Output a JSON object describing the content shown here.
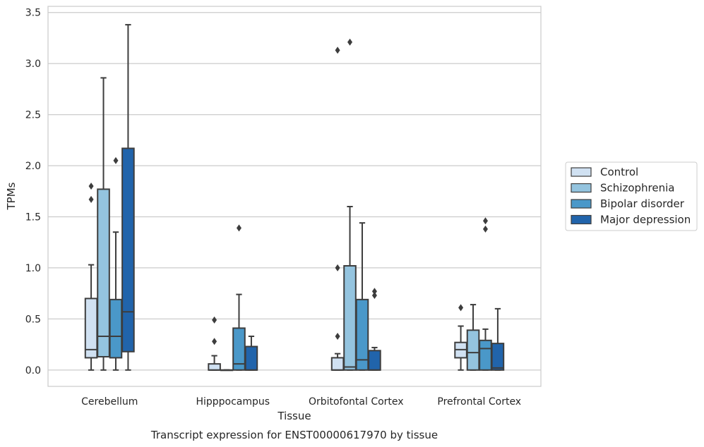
{
  "chart_data": {
    "type": "boxplot",
    "title": "",
    "caption": "Transcript expression for ENST00000617970 by tissue",
    "xlabel": "Tissue",
    "ylabel": "TPMs",
    "ylim": [
      -0.16,
      3.56
    ],
    "yticks": [
      "0.0",
      "0.5",
      "1.0",
      "1.5",
      "2.0",
      "2.5",
      "3.0",
      "3.5"
    ],
    "ytick_values": [
      0,
      0.5,
      1.0,
      1.5,
      2.0,
      2.5,
      3.0,
      3.5
    ],
    "grid": "horizontal",
    "legend_position": "right",
    "categories": [
      "Cerebellum",
      "Hipppocampus",
      "Orbitofontal Cortex",
      "Prefrontal Cortex"
    ],
    "series": [
      {
        "name": "Control",
        "color": "#d0e1f2",
        "boxes": [
          {
            "q1": 0.12,
            "median": 0.2,
            "q3": 0.7,
            "whislo": 0.0,
            "whishi": 1.03,
            "fliers": [
              1.67,
              1.8
            ]
          },
          {
            "q1": 0.0,
            "median": 0.0,
            "q3": 0.06,
            "whislo": 0.0,
            "whishi": 0.14,
            "fliers": [
              0.28,
              0.49
            ]
          },
          {
            "q1": 0.0,
            "median": 0.0,
            "q3": 0.12,
            "whislo": 0.0,
            "whishi": 0.16,
            "fliers": [
              0.33,
              1.0,
              3.13
            ]
          },
          {
            "q1": 0.12,
            "median": 0.2,
            "q3": 0.27,
            "whislo": 0.0,
            "whishi": 0.43,
            "fliers": [
              0.61
            ]
          }
        ]
      },
      {
        "name": "Schizophrenia",
        "color": "#94c4df",
        "boxes": [
          {
            "q1": 0.13,
            "median": 0.33,
            "q3": 1.77,
            "whislo": 0.0,
            "whishi": 2.86,
            "fliers": []
          },
          {
            "q1": 0.0,
            "median": 0.0,
            "q3": 0.0,
            "whislo": 0.0,
            "whishi": 0.0,
            "fliers": []
          },
          {
            "q1": 0.0,
            "median": 0.03,
            "q3": 1.02,
            "whislo": 0.0,
            "whishi": 1.6,
            "fliers": [
              3.21
            ]
          },
          {
            "q1": 0.0,
            "median": 0.17,
            "q3": 0.39,
            "whislo": 0.0,
            "whishi": 0.64,
            "fliers": []
          }
        ]
      },
      {
        "name": "Bipolar disorder",
        "color": "#4a98c9",
        "boxes": [
          {
            "q1": 0.12,
            "median": 0.33,
            "q3": 0.69,
            "whislo": 0.0,
            "whishi": 1.35,
            "fliers": [
              2.05
            ]
          },
          {
            "q1": 0.0,
            "median": 0.06,
            "q3": 0.41,
            "whislo": 0.0,
            "whishi": 0.74,
            "fliers": [
              1.39
            ]
          },
          {
            "q1": 0.0,
            "median": 0.1,
            "q3": 0.69,
            "whislo": 0.0,
            "whishi": 1.44,
            "fliers": []
          },
          {
            "q1": 0.0,
            "median": 0.21,
            "q3": 0.29,
            "whislo": 0.0,
            "whishi": 0.4,
            "fliers": [
              1.38,
              1.46
            ]
          }
        ]
      },
      {
        "name": "Major depression",
        "color": "#2164ab",
        "boxes": [
          {
            "q1": 0.18,
            "median": 0.57,
            "q3": 2.17,
            "whislo": 0.0,
            "whishi": 3.38,
            "fliers": []
          },
          {
            "q1": 0.0,
            "median": 0.0,
            "q3": 0.23,
            "whislo": 0.0,
            "whishi": 0.33,
            "fliers": []
          },
          {
            "q1": 0.0,
            "median": 0.0,
            "q3": 0.19,
            "whislo": 0.0,
            "whishi": 0.22,
            "fliers": [
              0.73,
              0.77
            ]
          },
          {
            "q1": 0.0,
            "median": 0.02,
            "q3": 0.26,
            "whislo": 0.0,
            "whishi": 0.6,
            "fliers": []
          }
        ]
      }
    ]
  }
}
